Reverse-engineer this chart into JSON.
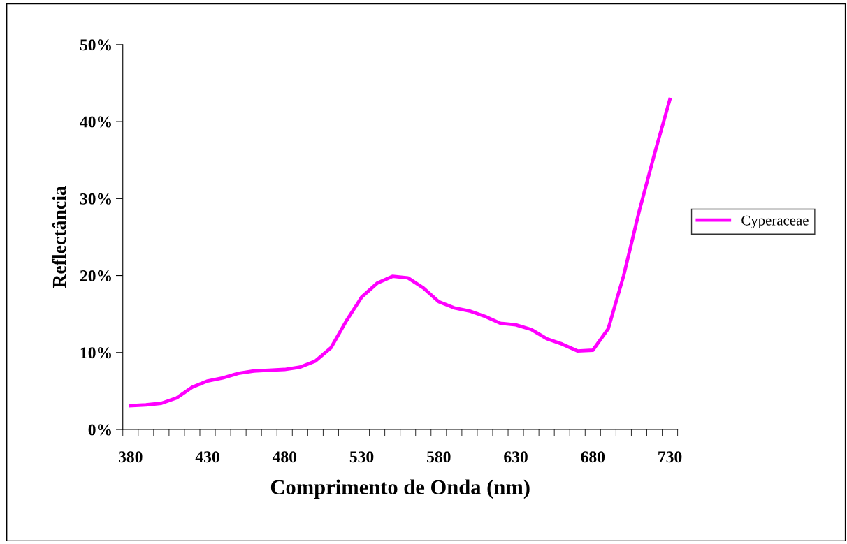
{
  "chart_data": {
    "type": "line",
    "xlabel": "Comprimento de Onda (nm)",
    "ylabel": "Reflectância",
    "categories": [
      "380",
      null,
      null,
      null,
      null,
      "430",
      null,
      null,
      null,
      null,
      "480",
      null,
      null,
      null,
      null,
      "530",
      null,
      null,
      null,
      null,
      "580",
      null,
      null,
      null,
      null,
      "630",
      null,
      null,
      null,
      null,
      "680",
      null,
      null,
      null,
      null,
      "730"
    ],
    "series": [
      {
        "name": "Cyperaceae",
        "color": "#ff00ff",
        "values": [
          3.1,
          3.2,
          3.4,
          4.1,
          5.5,
          6.3,
          6.7,
          7.3,
          7.6,
          7.7,
          7.8,
          8.1,
          8.9,
          10.6,
          14.1,
          17.2,
          19.0,
          19.9,
          19.7,
          18.4,
          16.6,
          15.8,
          15.4,
          14.7,
          13.8,
          13.6,
          13.0,
          11.8,
          11.1,
          10.2,
          10.3,
          13.1,
          20.0,
          28.3,
          35.8,
          42.9
        ]
      }
    ],
    "ylim": [
      0,
      50
    ],
    "yticks": [
      {
        "value": 0,
        "label": "0%"
      },
      {
        "value": 10,
        "label": "10%"
      },
      {
        "value": 20,
        "label": "20%"
      },
      {
        "value": 30,
        "label": "30%"
      },
      {
        "value": 40,
        "label": "40%"
      },
      {
        "value": 50,
        "label": "50%"
      }
    ],
    "grid": false,
    "legend": "right",
    "marker": "none",
    "line_style": "solid"
  }
}
